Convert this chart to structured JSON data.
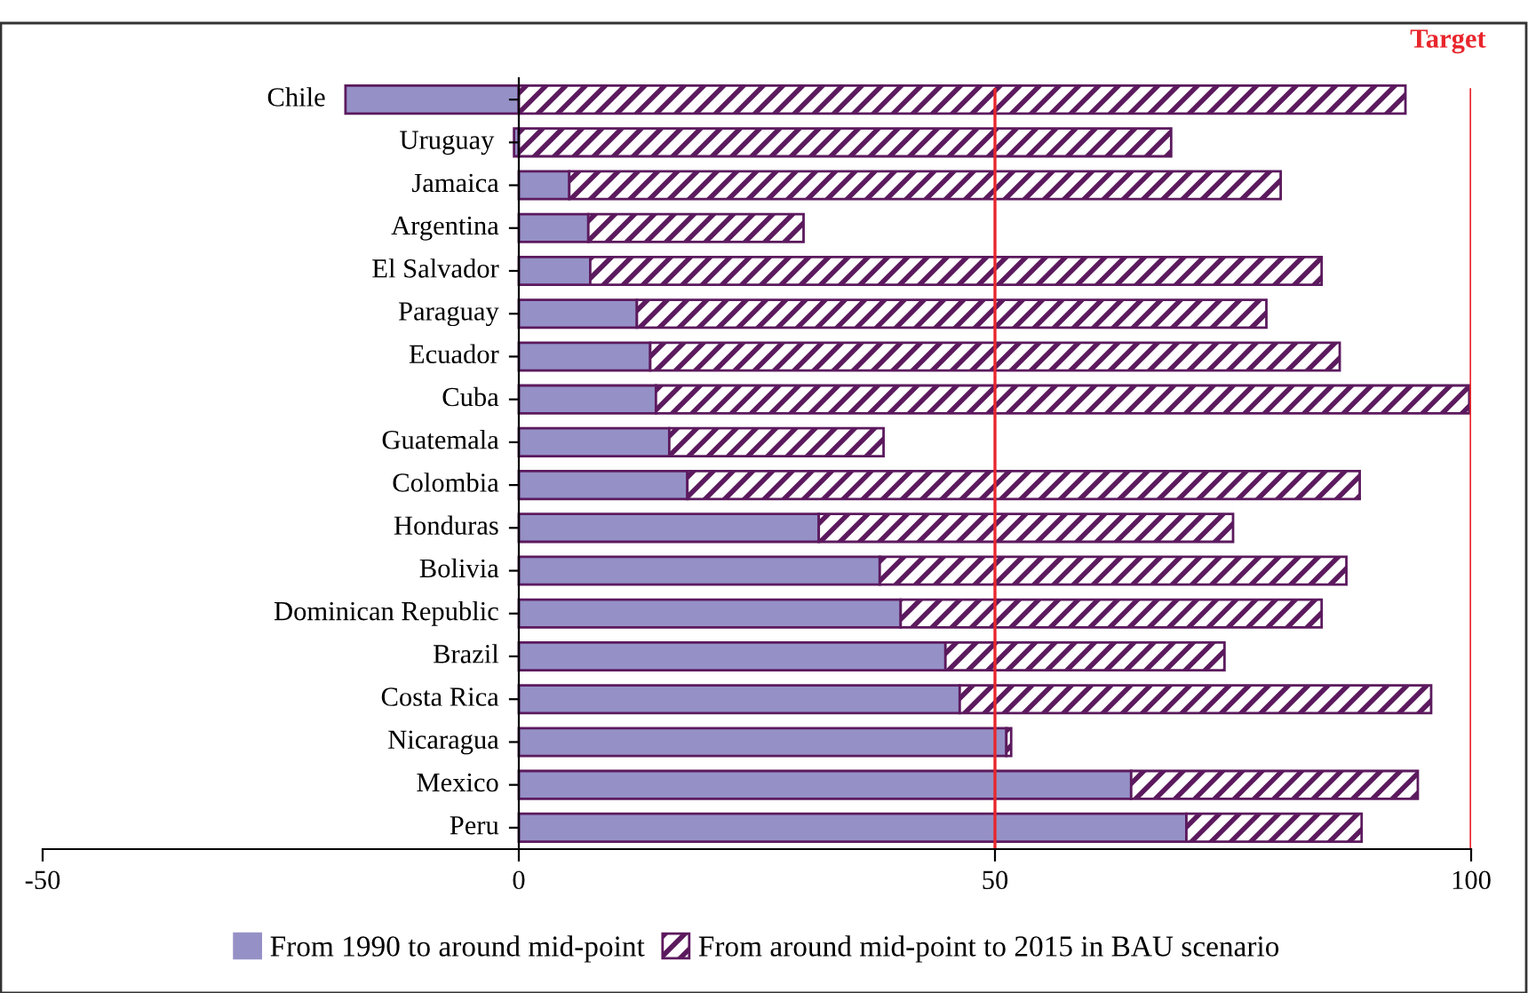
{
  "chart_data": {
    "type": "bar",
    "orientation": "horizontal",
    "stacked": true,
    "categories": [
      "Chile",
      "Uruguay",
      "Jamaica",
      "Argentina",
      "El Salvador",
      "Paraguay",
      "Ecuador",
      "Cuba",
      "Guatemala",
      "Colombia",
      "Honduras",
      "Bolivia",
      "Dominican Republic",
      "Brazil",
      "Costa Rica",
      "Nicaragua",
      "Mexico",
      "Peru"
    ],
    "series": [
      {
        "name": "From 1990 to around mid-point",
        "color": "#9591c6",
        "values": [
          -18.2,
          -0.5,
          5.3,
          7.3,
          7.5,
          12.4,
          13.8,
          14.4,
          15.8,
          17.7,
          31.5,
          37.9,
          40.1,
          44.8,
          46.3,
          51.2,
          64.3,
          70.1
        ]
      },
      {
        "name": "From around mid-point to 2015 in BAU scenario",
        "color": "#5c1a5e",
        "values": [
          93.1,
          68.5,
          74.7,
          22.6,
          76.8,
          66.1,
          72.4,
          85.4,
          22.5,
          70.6,
          43.5,
          49.0,
          44.2,
          29.3,
          49.5,
          0.5,
          30.1,
          18.4
        ]
      }
    ],
    "xlim": [
      -50,
      100
    ],
    "xticks": [
      -50,
      0,
      50,
      100
    ],
    "ref_lines": [
      {
        "axis": "x",
        "value": 50,
        "label": null,
        "color": "#e8262c"
      },
      {
        "axis": "x",
        "value": 100,
        "label": "Target",
        "color": "#e8262c"
      }
    ],
    "grid": false,
    "legend": "bottom"
  }
}
